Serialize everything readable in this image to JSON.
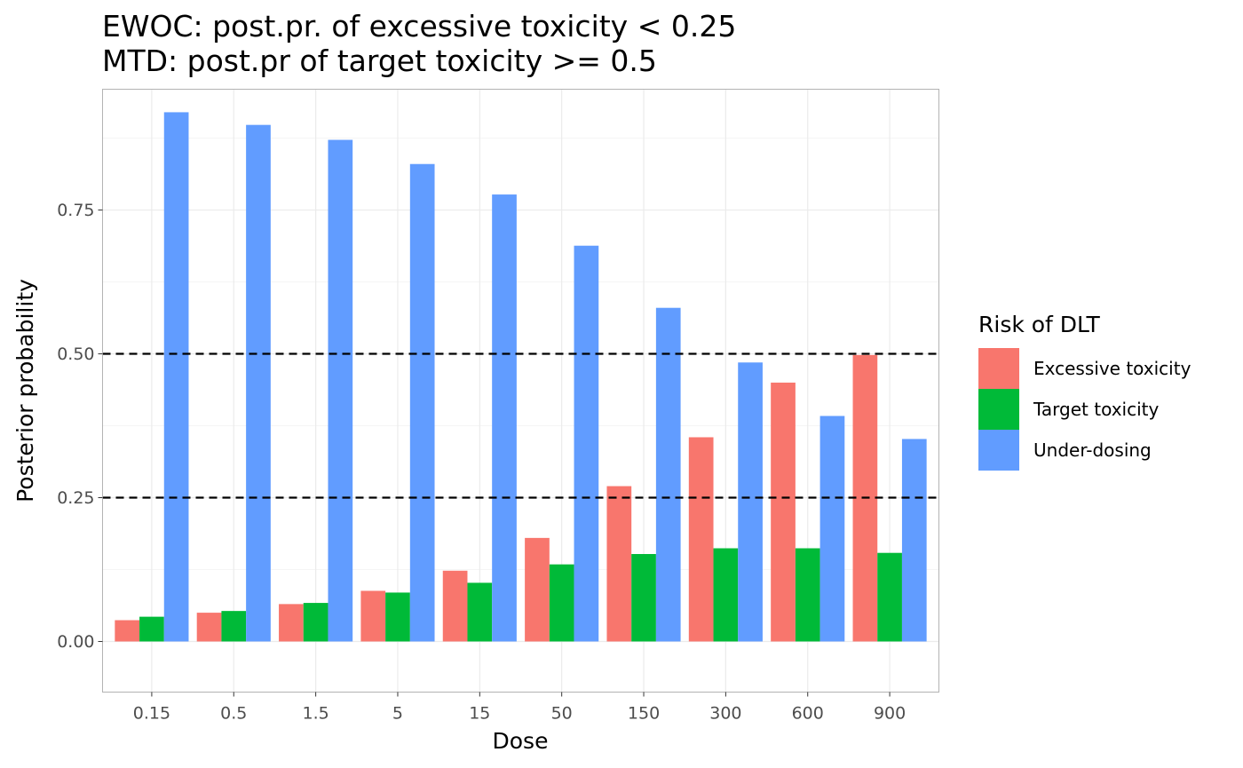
{
  "chart_data": {
    "type": "bar",
    "title_lines": [
      "EWOC: post.pr. of excessive toxicity < 0.25",
      "MTD: post.pr of target toxicity >= 0.5"
    ],
    "xlabel": "Dose",
    "ylabel": "Posterior probability",
    "categories": [
      "0.15",
      "0.5",
      "1.5",
      "5",
      "15",
      "50",
      "150",
      "300",
      "600",
      "900"
    ],
    "series": [
      {
        "name": "Excessive toxicity",
        "color": "#F8766D",
        "values": [
          0.037,
          0.05,
          0.065,
          0.088,
          0.123,
          0.18,
          0.27,
          0.355,
          0.45,
          0.498
        ]
      },
      {
        "name": "Target toxicity",
        "color": "#00BA38",
        "values": [
          0.043,
          0.053,
          0.067,
          0.085,
          0.102,
          0.134,
          0.152,
          0.162,
          0.162,
          0.154
        ]
      },
      {
        "name": "Under-dosing",
        "color": "#619CFF",
        "values": [
          0.92,
          0.898,
          0.872,
          0.83,
          0.777,
          0.688,
          0.58,
          0.485,
          0.392,
          0.352
        ]
      }
    ],
    "ylim": [
      -0.088,
      0.96
    ],
    "yticks": [
      0.0,
      0.25,
      0.5,
      0.75
    ],
    "ytick_labels": [
      "0.00",
      "0.25",
      "0.50",
      "0.75"
    ],
    "y_minor_gridlines": [
      0.125,
      0.375,
      0.625,
      0.875
    ],
    "reference_lines": [
      {
        "value": 0.25,
        "style": "dashed"
      },
      {
        "value": 0.5,
        "style": "dashed"
      }
    ],
    "grid": true,
    "legend": {
      "title": "Risk of DLT",
      "position": "right"
    },
    "colors": {
      "grid_major": "#ebebeb",
      "grid_minor": "#f5f5f5",
      "panel_border": "#b3b3b3",
      "reference_line": "#000000",
      "tick_text": "#4d4d4d"
    }
  }
}
